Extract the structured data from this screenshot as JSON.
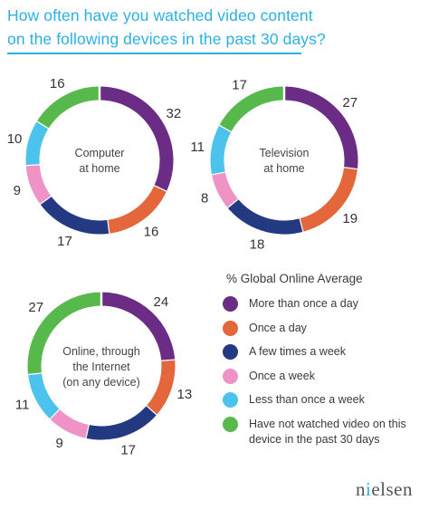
{
  "title_lines": [
    "How often have you watched video content",
    "on the following devices in the past 30 days?"
  ],
  "legend_title": "% Global Online Average",
  "categories": [
    "More than once a day",
    "Once a day",
    "A few times a week",
    "Once a week",
    "Less than once a week",
    "Have not watched video on this device in the past 30 days"
  ],
  "colors": [
    "#6b2c86",
    "#e3673b",
    "#233a82",
    "#ef93c6",
    "#4cc3ec",
    "#57b94b"
  ],
  "logo": "nielsen",
  "chart_data": {
    "type": "pie",
    "subtype": "donut",
    "categories": [
      "More than once a day",
      "Once a day",
      "A few times a week",
      "Once a week",
      "Less than once a week",
      "Have not watched video on this device in the past 30 days"
    ],
    "series": [
      {
        "name": "Computer at home",
        "values": [
          32,
          16,
          17,
          9,
          10,
          16
        ]
      },
      {
        "name": "Television at home",
        "values": [
          27,
          19,
          18,
          8,
          11,
          17
        ]
      },
      {
        "name": "Online, through the Internet (on any device)",
        "values": [
          24,
          13,
          17,
          9,
          11,
          27
        ]
      }
    ],
    "center_labels": [
      [
        "Computer",
        "at home"
      ],
      [
        "Television",
        "at home"
      ],
      [
        "Online, through",
        "the Internet",
        "(on any device)"
      ]
    ],
    "legend_position": "right"
  }
}
